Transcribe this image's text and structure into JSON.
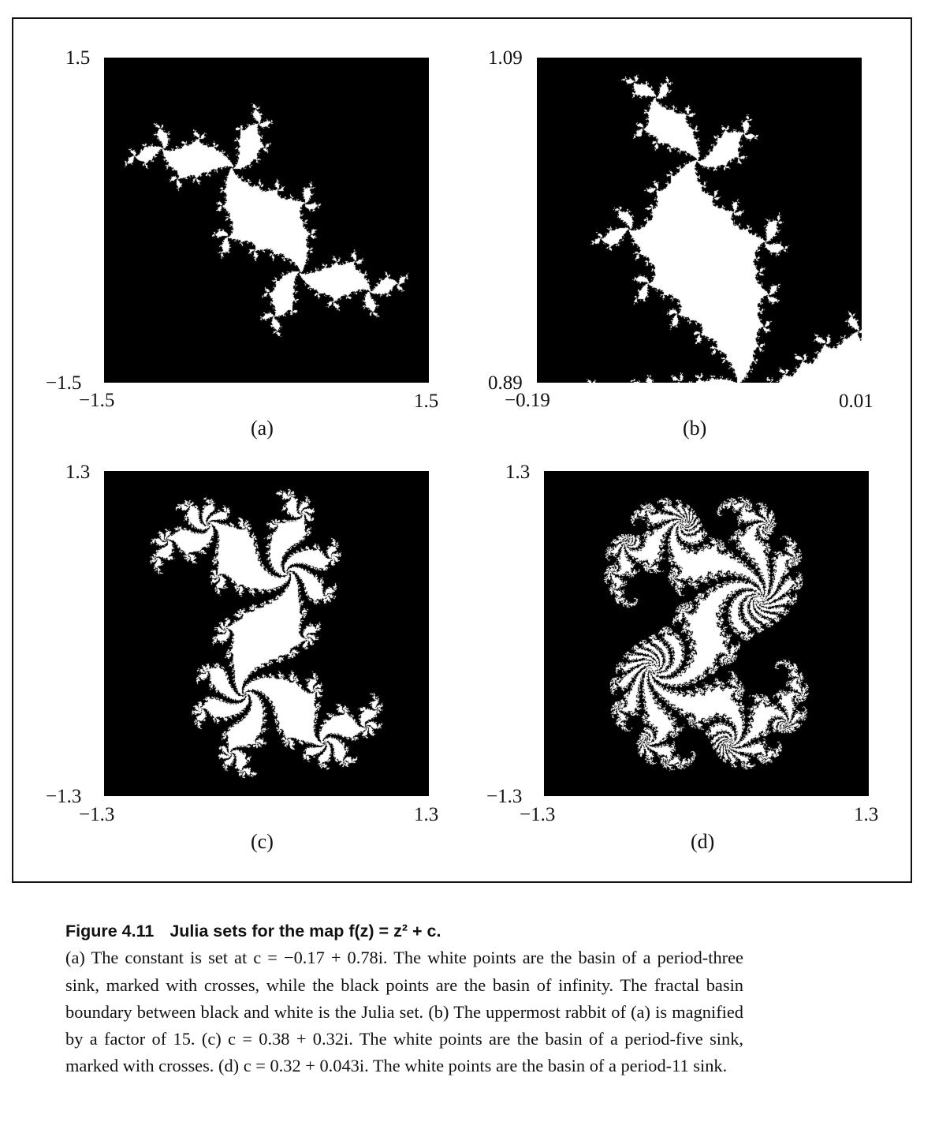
{
  "figure": {
    "panels": [
      {
        "id": "a",
        "label": "(a)",
        "y_top": "1.5",
        "y_bottom": "−1.5",
        "x_left": "−1.5",
        "x_right": "1.5",
        "c_re": -0.17,
        "c_im": 0.78,
        "view": [
          -1.5,
          1.5,
          -1.5,
          1.5
        ],
        "max_iter": 220
      },
      {
        "id": "b",
        "label": "(b)",
        "y_top": "1.09",
        "y_bottom": "0.89",
        "x_left": "−0.19",
        "x_right": "0.01",
        "c_re": -0.17,
        "c_im": 0.78,
        "view": [
          -0.19,
          0.01,
          0.89,
          1.09
        ],
        "max_iter": 260
      },
      {
        "id": "c",
        "label": "(c)",
        "y_top": "1.3",
        "y_bottom": "−1.3",
        "x_left": "−1.3",
        "x_right": "1.3",
        "c_re": 0.38,
        "c_im": 0.32,
        "view": [
          -1.3,
          1.3,
          -1.3,
          1.3
        ],
        "max_iter": 300
      },
      {
        "id": "d",
        "label": "(d)",
        "y_top": "1.3",
        "y_bottom": "−1.3",
        "x_left": "−1.3",
        "x_right": "1.3",
        "c_re": 0.32,
        "c_im": 0.043,
        "view": [
          -1.3,
          1.3,
          -1.3,
          1.3
        ],
        "max_iter": 400
      }
    ]
  },
  "caption": {
    "number": "Figure 4.11",
    "title": "Julia sets for the map f(z) = z² + c.",
    "text": "(a) The constant is set at c = −0.17 + 0.78i. The white points are the basin of a period-three sink, marked with crosses, while the black points are the basin of infinity. The fractal basin boundary between black and white is the Julia set. (b) The uppermost rabbit of (a) is magnified by a factor of 15. (c) c = 0.38 + 0.32i. The white points are the basin of a period-five sink, marked with crosses. (d) c = 0.32 + 0.043i. The white points are the basin of a period-11 sink."
  }
}
